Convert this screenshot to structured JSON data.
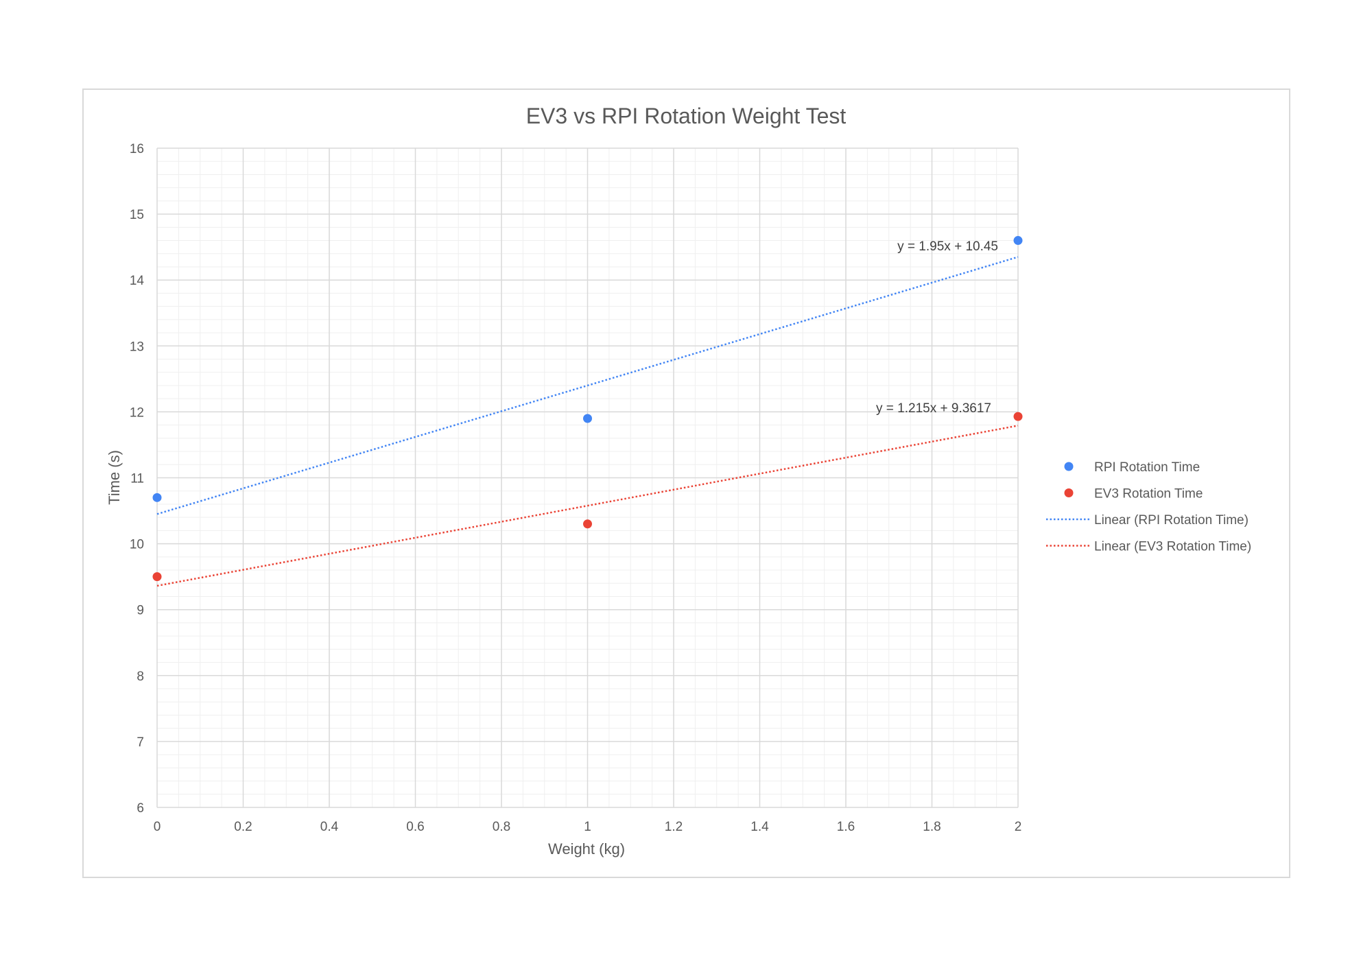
{
  "chart_data": {
    "type": "scatter",
    "title": "EV3 vs RPI Rotation Weight Test",
    "xlabel": "Weight (kg)",
    "ylabel": "Time (s)",
    "xlim": [
      0,
      2
    ],
    "ylim": [
      6,
      16
    ],
    "x_ticks": [
      "0",
      "0.2",
      "0.4",
      "0.6",
      "0.8",
      "1",
      "1.2",
      "1.4",
      "1.6",
      "1.8",
      "2"
    ],
    "y_ticks": [
      "6",
      "7",
      "8",
      "9",
      "10",
      "11",
      "12",
      "13",
      "14",
      "15",
      "16"
    ],
    "grid": "major and minor",
    "legend_position": "right",
    "series": [
      {
        "name": "RPI Rotation Time",
        "color": "#4285f4",
        "points": [
          {
            "x": 0,
            "y": 10.7
          },
          {
            "x": 1,
            "y": 11.9
          },
          {
            "x": 2,
            "y": 14.6
          }
        ],
        "trendline": {
          "name": "Linear (RPI Rotation Time)",
          "type": "linear",
          "slope": 1.95,
          "intercept": 10.45,
          "equation": "y = 1.95x + 10.45"
        }
      },
      {
        "name": "EV3 Rotation Time",
        "color": "#ea4335",
        "points": [
          {
            "x": 0,
            "y": 9.5
          },
          {
            "x": 1,
            "y": 10.3
          },
          {
            "x": 2,
            "y": 11.93
          }
        ],
        "trendline": {
          "name": "Linear (EV3 Rotation Time)",
          "type": "linear",
          "slope": 1.215,
          "intercept": 9.3617,
          "equation": "y = 1.215x + 9.3617"
        }
      }
    ]
  }
}
